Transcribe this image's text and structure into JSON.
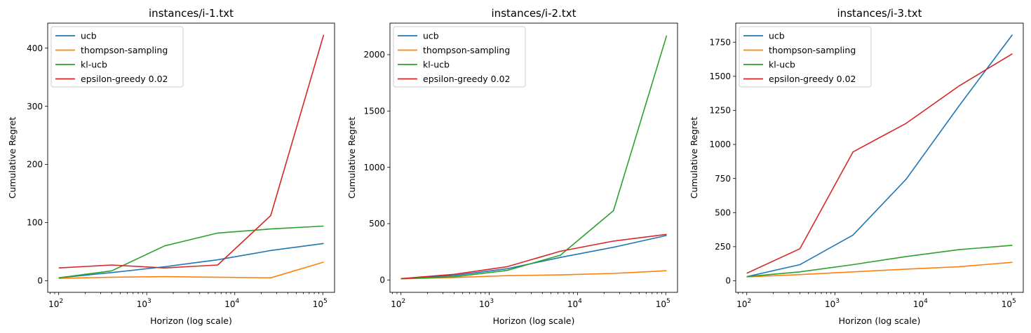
{
  "colors": {
    "ucb": "#1f77b4",
    "thompson-sampling": "#ff7f0e",
    "kl-ucb": "#2ca02c",
    "epsilon-greedy 0.02": "#d62728"
  },
  "legend": {
    "placement": "upper-left"
  },
  "chart_data": [
    {
      "type": "line",
      "title": "instances/i-1.txt",
      "xlabel": "Horizon (log scale)",
      "ylabel": "Cumulative Regret",
      "xscale": "log",
      "x": [
        100,
        400,
        1600,
        6400,
        25600,
        102400
      ],
      "xlim": [
        75,
        136000
      ],
      "ylim": [
        -20,
        443
      ],
      "yticks": [
        0,
        100,
        200,
        300,
        400
      ],
      "xtick_labels": [
        "10",
        "10",
        "10"
      ],
      "xtick_exponents": [
        "2",
        "3",
        "4"
      ],
      "xtick_labels_last": "10",
      "xtick_exponent_last": "5",
      "series": [
        {
          "name": "ucb",
          "values": [
            5,
            14,
            24,
            36,
            52,
            64
          ]
        },
        {
          "name": "thompson-sampling",
          "values": [
            4,
            6,
            7,
            6,
            5,
            32
          ]
        },
        {
          "name": "kl-ucb",
          "values": [
            5,
            17,
            60,
            82,
            89,
            94
          ]
        },
        {
          "name": "epsilon-greedy 0.02",
          "values": [
            22,
            27,
            22,
            27,
            112,
            423
          ]
        }
      ]
    },
    {
      "type": "line",
      "title": "instances/i-2.txt",
      "xlabel": "Horizon (log scale)",
      "ylabel": "Cumulative Regret",
      "xscale": "log",
      "x": [
        100,
        400,
        1600,
        6400,
        25600,
        102400
      ],
      "xlim": [
        75,
        136000
      ],
      "ylim": [
        -110,
        2280
      ],
      "yticks": [
        0,
        500,
        1000,
        1500,
        2000
      ],
      "xtick_labels": [
        "10",
        "10",
        "10"
      ],
      "xtick_exponents": [
        "2",
        "3",
        "4"
      ],
      "xtick_labels_last": "10",
      "xtick_exponent_last": "5",
      "series": [
        {
          "name": "ucb",
          "values": [
            12,
            40,
            100,
            200,
            290,
            395
          ]
        },
        {
          "name": "thompson-sampling",
          "values": [
            10,
            22,
            38,
            45,
            58,
            82
          ]
        },
        {
          "name": "kl-ucb",
          "values": [
            10,
            28,
            85,
            220,
            615,
            2170
          ]
        },
        {
          "name": "epsilon-greedy 0.02",
          "values": [
            12,
            50,
            118,
            255,
            345,
            405
          ]
        }
      ]
    },
    {
      "type": "line",
      "title": "instances/i-3.txt",
      "xlabel": "Horizon (log scale)",
      "ylabel": "Cumulative Regret",
      "xscale": "log",
      "x": [
        100,
        400,
        1600,
        6400,
        25600,
        102400
      ],
      "xlim": [
        75,
        136000
      ],
      "ylim": [
        -85,
        1890
      ],
      "yticks": [
        0,
        250,
        500,
        750,
        1000,
        1250,
        1500,
        1750
      ],
      "xtick_labels": [
        "10",
        "10",
        "10"
      ],
      "xtick_exponents": [
        "2",
        "3",
        "4"
      ],
      "xtick_labels_last": "10",
      "xtick_exponent_last": "5",
      "series": [
        {
          "name": "ucb",
          "values": [
            30,
            118,
            335,
            745,
            1285,
            1805
          ]
        },
        {
          "name": "thompson-sampling",
          "values": [
            28,
            45,
            65,
            85,
            103,
            135
          ]
        },
        {
          "name": "kl-ucb",
          "values": [
            30,
            65,
            118,
            178,
            228,
            260
          ]
        },
        {
          "name": "epsilon-greedy 0.02",
          "values": [
            55,
            235,
            945,
            1155,
            1430,
            1665
          ]
        }
      ]
    }
  ]
}
